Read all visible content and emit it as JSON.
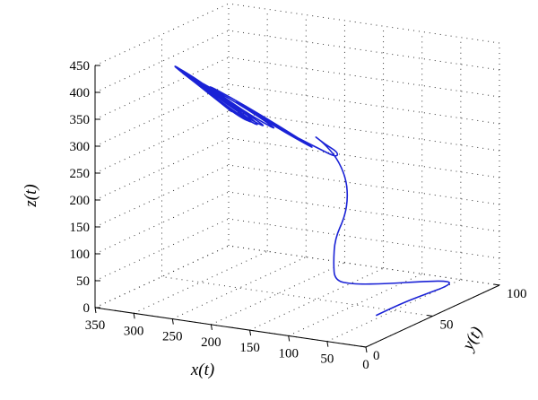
{
  "chart_data": {
    "type": "line3d",
    "title": "",
    "xlabel": "x(t)",
    "ylabel": "y(t)",
    "zlabel": "z(t)",
    "xlim": [
      0,
      350
    ],
    "ylim": [
      0,
      100
    ],
    "zlim": [
      0,
      450
    ],
    "x_ticks": [
      "350",
      "300",
      "250",
      "200",
      "150",
      "100",
      "50",
      "0"
    ],
    "y_ticks": [
      "0",
      "50",
      "100"
    ],
    "z_ticks": [
      "0",
      "50",
      "100",
      "150",
      "200",
      "250",
      "300",
      "350",
      "400",
      "450"
    ],
    "grid": true,
    "series_color": "#1a22d6",
    "series": [
      {
        "label_note": "single trajectory spiralling from the origin region onto a triangular limit cycle",
        "points": [
          [
            0,
            8,
            50
          ],
          [
            10,
            30,
            42
          ],
          [
            25,
            60,
            25
          ],
          [
            40,
            85,
            8
          ],
          [
            55,
            95,
            2
          ],
          [
            70,
            85,
            10
          ],
          [
            85,
            65,
            25
          ],
          [
            95,
            45,
            45
          ],
          [
            92,
            30,
            70
          ],
          [
            85,
            25,
            110
          ],
          [
            78,
            22,
            160
          ],
          [
            70,
            25,
            200
          ],
          [
            75,
            30,
            230
          ],
          [
            85,
            34,
            260
          ],
          [
            100,
            36,
            290
          ],
          [
            115,
            35,
            315
          ],
          [
            125,
            33,
            330
          ],
          [
            112,
            34,
            315
          ],
          [
            98,
            36,
            300
          ],
          [
            100,
            36,
            290
          ],
          [
            120,
            34,
            305
          ],
          [
            150,
            30,
            330
          ],
          [
            190,
            25,
            370
          ],
          [
            215,
            22,
            395
          ],
          [
            170,
            30,
            340
          ],
          [
            120,
            34,
            300
          ],
          [
            140,
            32,
            320
          ],
          [
            190,
            26,
            370
          ],
          [
            240,
            20,
            415
          ],
          [
            230,
            20,
            405
          ],
          [
            190,
            25,
            360
          ],
          [
            160,
            30,
            330
          ],
          [
            200,
            25,
            375
          ],
          [
            260,
            18,
            430
          ],
          [
            245,
            20,
            410
          ],
          [
            200,
            24,
            360
          ],
          [
            170,
            28,
            335
          ],
          [
            215,
            22,
            385
          ],
          [
            270,
            16,
            440
          ],
          [
            250,
            19,
            415
          ],
          [
            205,
            24,
            360
          ],
          [
            178,
            28,
            335
          ],
          [
            225,
            22,
            395
          ],
          [
            275,
            16,
            445
          ],
          [
            252,
            19,
            415
          ],
          [
            210,
            24,
            362
          ],
          [
            185,
            27,
            340
          ],
          [
            235,
            21,
            405
          ],
          [
            280,
            16,
            450
          ],
          [
            255,
            19,
            418
          ],
          [
            212,
            24,
            362
          ],
          [
            190,
            27,
            342
          ],
          [
            240,
            21,
            410
          ],
          [
            282,
            16,
            452
          ],
          [
            255,
            19,
            418
          ],
          [
            214,
            24,
            364
          ],
          [
            192,
            27,
            344
          ],
          [
            245,
            21,
            412
          ],
          [
            284,
            16,
            454
          ],
          [
            256,
            19,
            419
          ],
          [
            215,
            24,
            365
          ]
        ]
      }
    ]
  }
}
